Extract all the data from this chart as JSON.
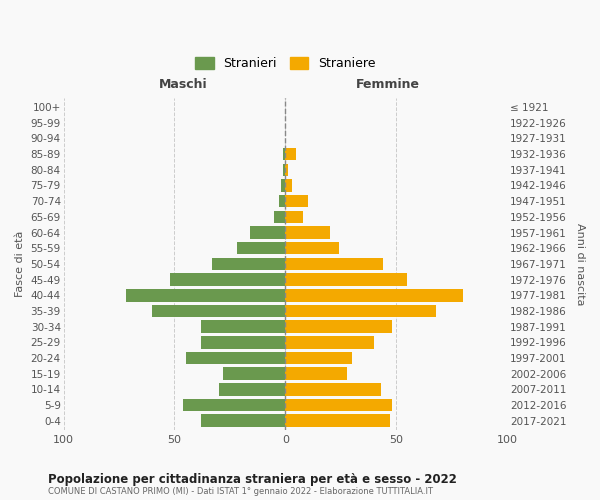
{
  "age_groups": [
    "0-4",
    "5-9",
    "10-14",
    "15-19",
    "20-24",
    "25-29",
    "30-34",
    "35-39",
    "40-44",
    "45-49",
    "50-54",
    "55-59",
    "60-64",
    "65-69",
    "70-74",
    "75-79",
    "80-84",
    "85-89",
    "90-94",
    "95-99",
    "100+"
  ],
  "birth_years": [
    "2017-2021",
    "2012-2016",
    "2007-2011",
    "2002-2006",
    "1997-2001",
    "1992-1996",
    "1987-1991",
    "1982-1986",
    "1977-1981",
    "1972-1976",
    "1967-1971",
    "1962-1966",
    "1957-1961",
    "1952-1956",
    "1947-1951",
    "1942-1946",
    "1937-1941",
    "1932-1936",
    "1927-1931",
    "1922-1926",
    "≤ 1921"
  ],
  "maschi": [
    38,
    46,
    30,
    28,
    45,
    38,
    38,
    60,
    72,
    52,
    33,
    22,
    16,
    5,
    3,
    2,
    1,
    1,
    0,
    0,
    0
  ],
  "femmine": [
    47,
    48,
    43,
    28,
    30,
    40,
    48,
    68,
    80,
    55,
    44,
    24,
    20,
    8,
    10,
    3,
    1,
    5,
    0,
    0,
    0
  ],
  "maschi_color": "#6a994e",
  "femmine_color": "#f4a900",
  "background_color": "#f9f9f9",
  "grid_color": "#cccccc",
  "title": "Popolazione per cittadinanza straniera per età e sesso - 2022",
  "subtitle": "COMUNE DI CASTANO PRIMO (MI) - Dati ISTAT 1° gennaio 2022 - Elaborazione TUTTITALIA.IT",
  "xlabel_left": "Maschi",
  "xlabel_right": "Femmine",
  "ylabel_left": "Fasce di età",
  "ylabel_right": "Anni di nascita",
  "legend_maschi": "Stranieri",
  "legend_femmine": "Straniere",
  "xlim": 100
}
